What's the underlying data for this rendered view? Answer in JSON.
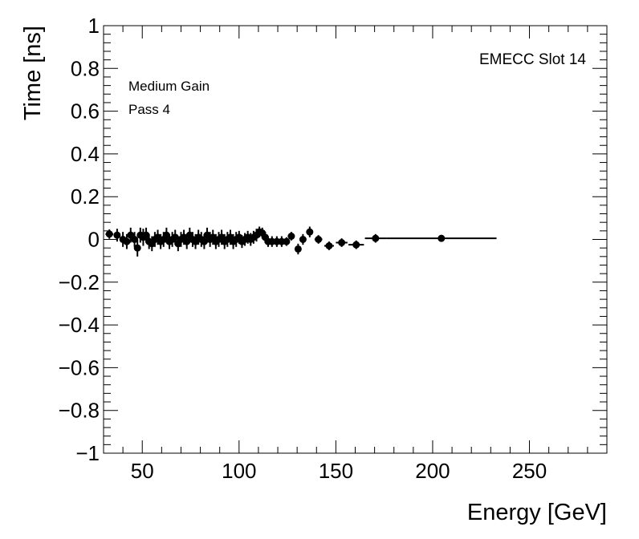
{
  "chart_data": {
    "type": "scatter",
    "title": "",
    "xlabel": "Energy [GeV]",
    "ylabel": "Time [ns]",
    "xlim": [
      30,
      290
    ],
    "ylim": [
      -1,
      1
    ],
    "x_ticks": [
      50,
      100,
      150,
      200,
      250
    ],
    "y_ticks": [
      -1,
      -0.8,
      -0.6,
      -0.4,
      -0.2,
      0,
      0.2,
      0.4,
      0.6,
      0.8,
      1
    ],
    "x_tick_labels": [
      "50",
      "100",
      "150",
      "200",
      "250"
    ],
    "y_tick_labels": [
      "−1",
      "−0.8",
      "−0.6",
      "−0.4",
      "−0.2",
      "0",
      "0.2",
      "0.4",
      "0.6",
      "0.8",
      "1"
    ],
    "annotations": {
      "slot": "EMECC Slot 14",
      "gain": "Medium Gain",
      "pass": "Pass 4"
    },
    "grid": false,
    "series": [
      {
        "marker": "circle",
        "color": "#000000",
        "points": [
          {
            "x": 33.0,
            "y": 0.025,
            "yerr": 0.022,
            "xerr": 2.0
          },
          {
            "x": 37.0,
            "y": 0.02,
            "yerr": 0.03,
            "xerr": 1.2
          },
          {
            "x": 40.0,
            "y": 0.0,
            "yerr": 0.035,
            "xerr": 0.8
          },
          {
            "x": 42.0,
            "y": -0.01,
            "yerr": 0.035,
            "xerr": 0.8
          },
          {
            "x": 44.0,
            "y": 0.02,
            "yerr": 0.035,
            "xerr": 0.8
          },
          {
            "x": 46.0,
            "y": 0.0,
            "yerr": 0.035,
            "xerr": 0.8
          },
          {
            "x": 47.5,
            "y": -0.04,
            "yerr": 0.04,
            "xerr": 0.7
          },
          {
            "x": 49.0,
            "y": 0.02,
            "yerr": 0.035,
            "xerr": 0.7
          },
          {
            "x": 50.5,
            "y": 0.01,
            "yerr": 0.04,
            "xerr": 0.7
          },
          {
            "x": 52.0,
            "y": 0.02,
            "yerr": 0.035,
            "xerr": 0.7
          },
          {
            "x": 53.5,
            "y": -0.01,
            "yerr": 0.035,
            "xerr": 0.7
          },
          {
            "x": 55.0,
            "y": -0.02,
            "yerr": 0.035,
            "xerr": 0.7
          },
          {
            "x": 56.5,
            "y": 0.0,
            "yerr": 0.035,
            "xerr": 0.7
          },
          {
            "x": 58.0,
            "y": 0.01,
            "yerr": 0.035,
            "xerr": 0.7
          },
          {
            "x": 59.5,
            "y": -0.01,
            "yerr": 0.035,
            "xerr": 0.7
          },
          {
            "x": 61.0,
            "y": 0.0,
            "yerr": 0.035,
            "xerr": 0.7
          },
          {
            "x": 62.5,
            "y": 0.02,
            "yerr": 0.035,
            "xerr": 0.7
          },
          {
            "x": 64.0,
            "y": -0.01,
            "yerr": 0.035,
            "xerr": 0.7
          },
          {
            "x": 65.5,
            "y": 0.0,
            "yerr": 0.035,
            "xerr": 0.7
          },
          {
            "x": 67.0,
            "y": 0.01,
            "yerr": 0.035,
            "xerr": 0.7
          },
          {
            "x": 68.5,
            "y": -0.02,
            "yerr": 0.035,
            "xerr": 0.7
          },
          {
            "x": 70.0,
            "y": 0.0,
            "yerr": 0.035,
            "xerr": 0.7
          },
          {
            "x": 71.5,
            "y": 0.01,
            "yerr": 0.035,
            "xerr": 0.7
          },
          {
            "x": 73.0,
            "y": -0.01,
            "yerr": 0.035,
            "xerr": 0.7
          },
          {
            "x": 74.5,
            "y": 0.02,
            "yerr": 0.035,
            "xerr": 0.7
          },
          {
            "x": 76.0,
            "y": 0.0,
            "yerr": 0.035,
            "xerr": 0.7
          },
          {
            "x": 77.5,
            "y": -0.01,
            "yerr": 0.035,
            "xerr": 0.7
          },
          {
            "x": 79.0,
            "y": 0.01,
            "yerr": 0.035,
            "xerr": 0.7
          },
          {
            "x": 80.5,
            "y": 0.0,
            "yerr": 0.035,
            "xerr": 0.7
          },
          {
            "x": 82.0,
            "y": -0.01,
            "yerr": 0.035,
            "xerr": 0.7
          },
          {
            "x": 83.5,
            "y": 0.02,
            "yerr": 0.035,
            "xerr": 0.7
          },
          {
            "x": 85.0,
            "y": 0.0,
            "yerr": 0.035,
            "xerr": 0.7
          },
          {
            "x": 86.5,
            "y": 0.01,
            "yerr": 0.035,
            "xerr": 0.7
          },
          {
            "x": 88.0,
            "y": -0.01,
            "yerr": 0.035,
            "xerr": 0.7
          },
          {
            "x": 89.5,
            "y": 0.0,
            "yerr": 0.035,
            "xerr": 0.7
          },
          {
            "x": 91.0,
            "y": 0.01,
            "yerr": 0.035,
            "xerr": 0.7
          },
          {
            "x": 92.5,
            "y": -0.01,
            "yerr": 0.035,
            "xerr": 0.7
          },
          {
            "x": 94.0,
            "y": 0.0,
            "yerr": 0.035,
            "xerr": 0.7
          },
          {
            "x": 95.5,
            "y": 0.01,
            "yerr": 0.035,
            "xerr": 0.7
          },
          {
            "x": 97.0,
            "y": -0.01,
            "yerr": 0.035,
            "xerr": 0.7
          },
          {
            "x": 98.5,
            "y": 0.0,
            "yerr": 0.035,
            "xerr": 0.7
          },
          {
            "x": 100.0,
            "y": 0.01,
            "yerr": 0.03,
            "xerr": 0.7
          },
          {
            "x": 101.5,
            "y": -0.01,
            "yerr": 0.03,
            "xerr": 0.7
          },
          {
            "x": 103.0,
            "y": 0.0,
            "yerr": 0.03,
            "xerr": 0.7
          },
          {
            "x": 104.5,
            "y": 0.01,
            "yerr": 0.03,
            "xerr": 0.7
          },
          {
            "x": 106.0,
            "y": 0.0,
            "yerr": 0.03,
            "xerr": 0.7
          },
          {
            "x": 107.5,
            "y": 0.01,
            "yerr": 0.03,
            "xerr": 0.7
          },
          {
            "x": 109.0,
            "y": 0.02,
            "yerr": 0.03,
            "xerr": 0.7
          },
          {
            "x": 110.5,
            "y": 0.035,
            "yerr": 0.025,
            "xerr": 0.8
          },
          {
            "x": 112.0,
            "y": 0.03,
            "yerr": 0.025,
            "xerr": 0.8
          },
          {
            "x": 113.5,
            "y": 0.01,
            "yerr": 0.025,
            "xerr": 0.8
          },
          {
            "x": 115.0,
            "y": -0.01,
            "yerr": 0.025,
            "xerr": 0.8
          },
          {
            "x": 117.0,
            "y": -0.01,
            "yerr": 0.025,
            "xerr": 1.0
          },
          {
            "x": 119.5,
            "y": -0.01,
            "yerr": 0.025,
            "xerr": 1.0
          },
          {
            "x": 122.0,
            "y": -0.01,
            "yerr": 0.025,
            "xerr": 1.2
          },
          {
            "x": 124.5,
            "y": -0.01,
            "yerr": 0.02,
            "xerr": 1.2
          },
          {
            "x": 127.0,
            "y": 0.015,
            "yerr": 0.02,
            "xerr": 1.2
          },
          {
            "x": 130.5,
            "y": -0.045,
            "yerr": 0.025,
            "xerr": 1.2
          },
          {
            "x": 133.0,
            "y": 0.0,
            "yerr": 0.025,
            "xerr": 1.2
          },
          {
            "x": 136.5,
            "y": 0.035,
            "yerr": 0.025,
            "xerr": 1.5
          },
          {
            "x": 141.0,
            "y": 0.0,
            "yerr": 0.02,
            "xerr": 2.0
          },
          {
            "x": 146.5,
            "y": -0.03,
            "yerr": 0.02,
            "xerr": 2.5
          },
          {
            "x": 153.0,
            "y": -0.015,
            "yerr": 0.02,
            "xerr": 3.0
          },
          {
            "x": 160.5,
            "y": -0.025,
            "yerr": 0.02,
            "xerr": 4.0
          },
          {
            "x": 170.5,
            "y": 0.005,
            "yerr": 0.02,
            "xerr": 5.5
          },
          {
            "x": 204.5,
            "y": 0.005,
            "yerr": 0.012,
            "xerr": 28.5
          }
        ]
      }
    ]
  }
}
